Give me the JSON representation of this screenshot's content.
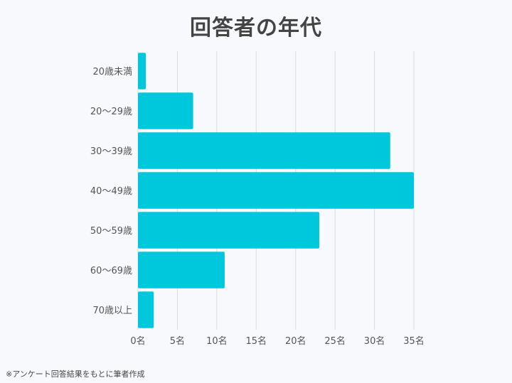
{
  "chart_data": {
    "type": "bar",
    "orientation": "horizontal",
    "title": "回答者の年代",
    "categories": [
      "20歳未満",
      "20〜29歳",
      "30〜39歳",
      "40〜49歳",
      "50〜59歳",
      "60〜69歳",
      "70歳以上"
    ],
    "values": [
      1,
      7,
      32,
      35,
      23,
      11,
      2
    ],
    "xticks": [
      "0名",
      "5名",
      "10名",
      "15名",
      "20名",
      "25名",
      "30名",
      "35名"
    ],
    "xlim": [
      0,
      35
    ],
    "xlabel": "",
    "ylabel": "",
    "grid": true,
    "bar_color": "#00c8dc"
  },
  "footnote": "※アンケート回答結果をもとに筆者作成"
}
